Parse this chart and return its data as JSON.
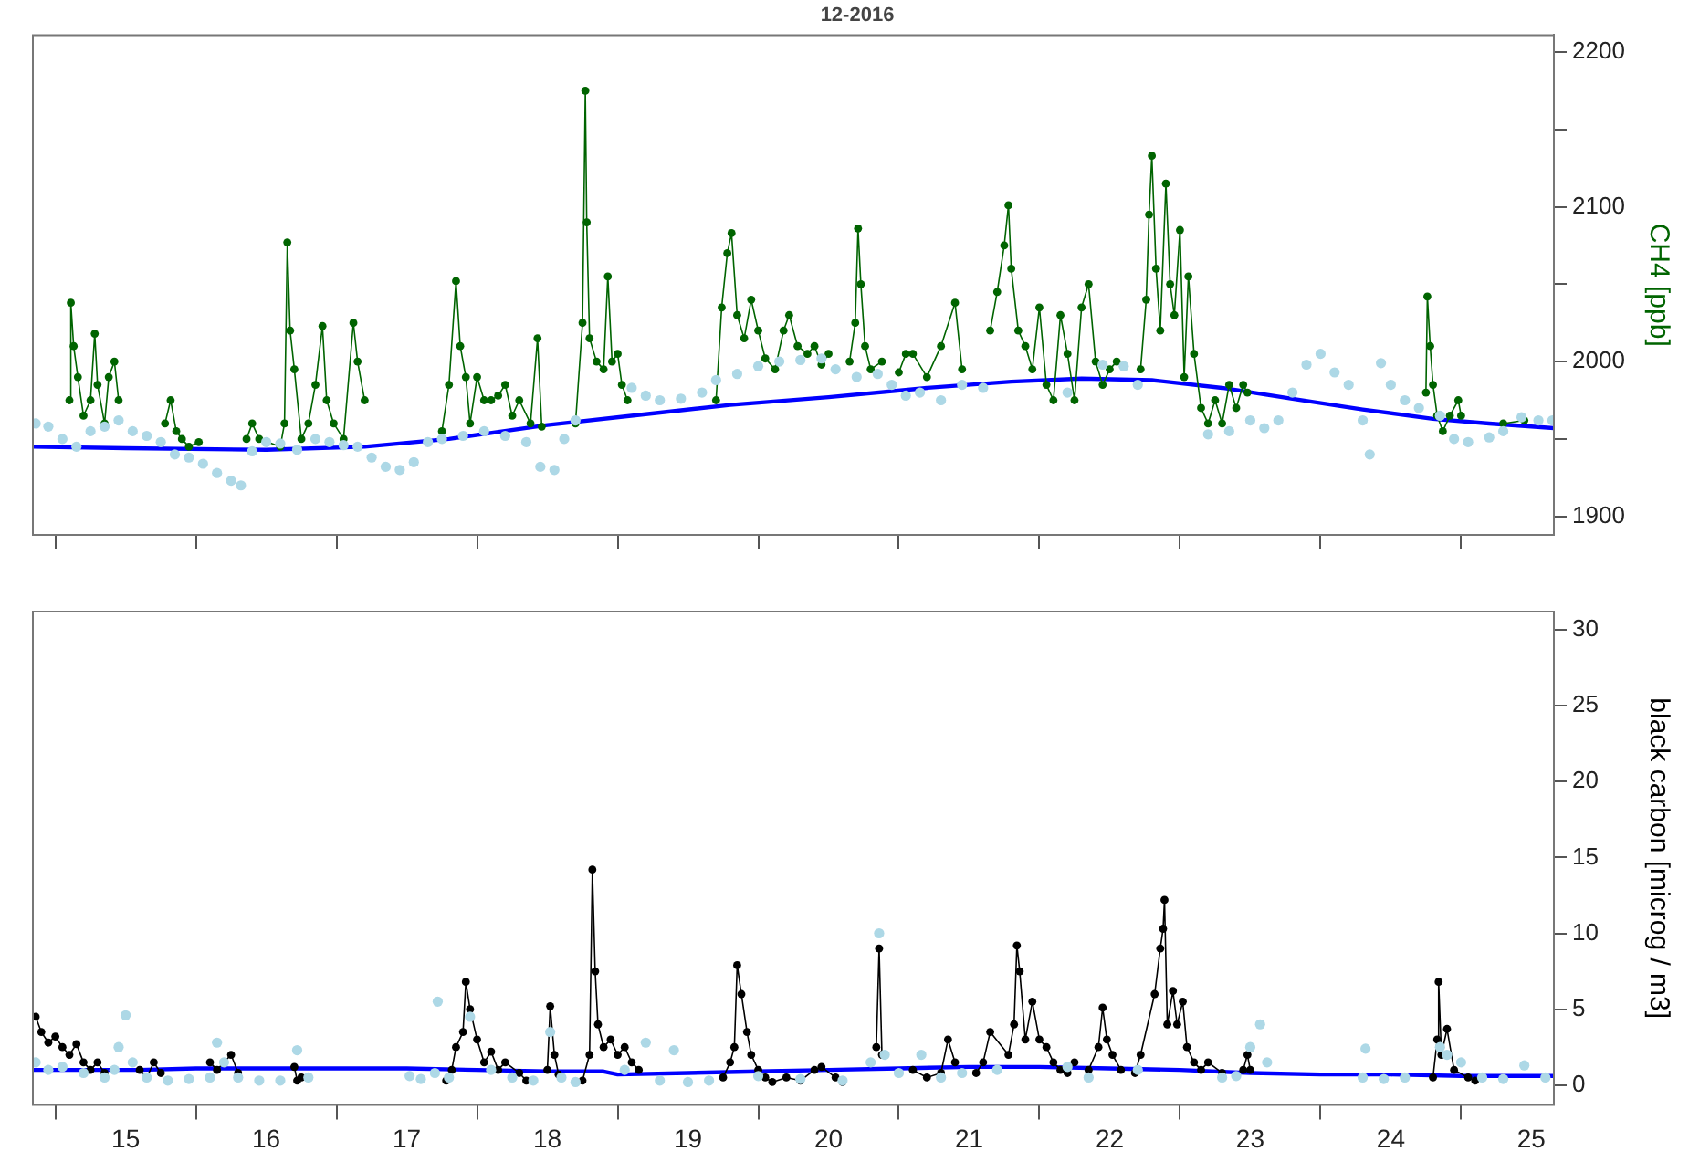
{
  "chart_data": [
    {
      "type": "line",
      "title": "12-2016",
      "ylabel": "CH4 [ppb]",
      "xlim": [
        14.84,
        25.66
      ],
      "ylim": [
        1888,
        2211
      ],
      "xticks": [
        {
          "value": 15,
          "label": null
        },
        {
          "value": 16,
          "label": null
        },
        {
          "value": 17,
          "label": null
        },
        {
          "value": 18,
          "label": null
        },
        {
          "value": 19,
          "label": null
        },
        {
          "value": 20,
          "label": null
        },
        {
          "value": 21,
          "label": null
        },
        {
          "value": 22,
          "label": null
        },
        {
          "value": 23,
          "label": null
        },
        {
          "value": 24,
          "label": null
        },
        {
          "value": 25,
          "label": null
        }
      ],
      "yticks": [
        1900,
        {
          "value": 1950,
          "label": null
        },
        2000,
        {
          "value": 2050,
          "label": null
        },
        2100,
        {
          "value": 2150,
          "label": null
        },
        2200
      ],
      "tick_labels": "y",
      "grid": false,
      "legend": false,
      "series": [
        {
          "type": "scatter",
          "color": "#add8e6",
          "marker": "circle",
          "x": [
            14.86,
            14.95,
            15.05,
            15.15,
            15.25,
            15.35,
            15.45,
            15.55,
            15.65,
            15.75,
            15.85,
            15.95,
            16.05,
            16.15,
            16.25,
            16.32,
            16.4,
            16.5,
            16.6,
            16.72,
            16.85,
            16.95,
            17.05,
            17.15,
            17.25,
            17.35,
            17.45,
            17.55,
            17.65,
            17.75,
            17.9,
            18.05,
            18.2,
            18.35,
            18.45,
            18.55,
            18.62,
            18.7,
            19.1,
            19.2,
            19.3,
            19.45,
            19.6,
            19.7,
            19.85,
            20.0,
            20.15,
            20.3,
            20.45,
            20.55,
            20.7,
            20.85,
            20.95,
            21.05,
            21.15,
            21.3,
            21.45,
            21.6,
            22.2,
            22.45,
            22.6,
            22.7,
            23.2,
            23.35,
            23.5,
            23.6,
            23.7,
            23.8,
            23.9,
            24.0,
            24.1,
            24.2,
            24.3,
            24.35,
            24.43,
            24.5,
            24.6,
            24.7,
            24.85,
            24.95,
            25.05,
            25.2,
            25.3,
            25.43,
            25.55,
            25.65
          ],
          "values": [
            1960,
            1958,
            1950,
            1945,
            1955,
            1958,
            1962,
            1955,
            1952,
            1948,
            1940,
            1938,
            1934,
            1928,
            1923,
            1920,
            1942,
            1948,
            1947,
            1943,
            1950,
            1948,
            1946,
            1945,
            1938,
            1932,
            1930,
            1935,
            1948,
            1950,
            1952,
            1955,
            1952,
            1948,
            1932,
            1930,
            1950,
            1962,
            1983,
            1978,
            1975,
            1976,
            1980,
            1988,
            1992,
            1997,
            2000,
            2001,
            2002,
            1995,
            1990,
            1992,
            1985,
            1978,
            1980,
            1975,
            1985,
            1983,
            1980,
            1998,
            1997,
            1985,
            1953,
            1955,
            1962,
            1957,
            1962,
            1980,
            1998,
            2005,
            1993,
            1985,
            1962,
            1940,
            1999,
            1985,
            1975,
            1970,
            1965,
            1950,
            1948,
            1951,
            1955,
            1964,
            1962,
            1962
          ]
        },
        {
          "type": "line",
          "color": "#006400",
          "marker": "circle",
          "x": [
            15.1,
            15.11,
            15.13,
            15.16,
            15.2,
            15.25,
            15.28,
            15.3,
            15.35,
            15.38,
            15.42,
            15.45,
            15.6,
            15.78,
            15.82,
            15.86,
            15.9,
            15.95,
            16.02,
            16.2,
            16.36,
            16.4,
            16.45,
            16.6,
            16.63,
            16.65,
            16.67,
            16.7,
            16.75,
            16.8,
            16.85,
            16.9,
            16.93,
            16.98,
            17.05,
            17.12,
            17.15,
            17.2,
            17.5,
            17.75,
            17.8,
            17.85,
            17.88,
            17.92,
            17.95,
            18.0,
            18.05,
            18.1,
            18.15,
            18.2,
            18.25,
            18.3,
            18.38,
            18.43,
            18.46,
            18.6,
            18.7,
            18.75,
            18.77,
            18.78,
            18.8,
            18.85,
            18.9,
            18.93,
            18.96,
            19.0,
            19.03,
            19.07,
            19.4,
            19.7,
            19.74,
            19.78,
            19.81,
            19.85,
            19.9,
            19.95,
            20.0,
            20.05,
            20.12,
            20.18,
            20.22,
            20.28,
            20.35,
            20.4,
            20.45,
            20.5,
            20.58,
            20.65,
            20.69,
            20.71,
            20.73,
            20.76,
            20.8,
            20.88,
            20.94,
            21.0,
            21.05,
            21.1,
            21.2,
            21.3,
            21.4,
            21.45,
            21.55,
            21.65,
            21.7,
            21.75,
            21.78,
            21.8,
            21.85,
            21.9,
            21.95,
            22.0,
            22.05,
            22.1,
            22.15,
            22.2,
            22.25,
            22.3,
            22.35,
            22.4,
            22.45,
            22.5,
            22.55,
            22.63,
            22.72,
            22.76,
            22.78,
            22.8,
            22.83,
            22.86,
            22.9,
            22.93,
            22.96,
            23.0,
            23.03,
            23.06,
            23.1,
            23.15,
            23.2,
            23.25,
            23.3,
            23.35,
            23.4,
            23.45,
            23.48,
            24.0,
            24.75,
            24.76,
            24.78,
            24.8,
            24.83,
            24.87,
            24.92,
            24.98,
            25.0,
            25.15,
            25.3,
            25.45
          ],
          "values": [
            1975,
            2038,
            2010,
            1990,
            1965,
            1975,
            2018,
            1985,
            1960,
            1990,
            2000,
            1975,
            null,
            1960,
            1975,
            1955,
            1950,
            1945,
            1948,
            null,
            1950,
            1960,
            1950,
            1945,
            1960,
            2077,
            2020,
            1995,
            1950,
            1960,
            1985,
            2023,
            1975,
            1960,
            1950,
            2025,
            2000,
            1975,
            null,
            1955,
            1985,
            2052,
            2010,
            1990,
            1960,
            1990,
            1975,
            1975,
            1978,
            1985,
            1965,
            1975,
            1960,
            2015,
            1958,
            null,
            1960,
            2025,
            2175,
            2090,
            2015,
            2000,
            1995,
            2055,
            2000,
            2005,
            1985,
            1975,
            null,
            1975,
            2035,
            2070,
            2083,
            2030,
            2015,
            2040,
            2020,
            2002,
            1995,
            2020,
            2030,
            2010,
            2005,
            2010,
            1998,
            2005,
            null,
            2000,
            2025,
            2086,
            2050,
            2010,
            1995,
            2000,
            null,
            1993,
            2005,
            2005,
            1990,
            2010,
            2038,
            1995,
            null,
            2020,
            2045,
            2075,
            2101,
            2060,
            2020,
            2010,
            1995,
            2035,
            1985,
            1975,
            2030,
            2005,
            1975,
            2035,
            2050,
            2000,
            1985,
            1995,
            2000,
            null,
            1995,
            2040,
            2095,
            2133,
            2060,
            2020,
            2115,
            2050,
            2030,
            2085,
            1990,
            2055,
            2005,
            1970,
            1960,
            1975,
            1960,
            1985,
            1970,
            1985,
            1980,
            null,
            1980,
            2042,
            2010,
            1985,
            1965,
            1955,
            1965,
            1975,
            1965,
            null,
            1960,
            1962
          ]
        },
        {
          "type": "line",
          "color": "#0000ff",
          "marker": "none",
          "x": [
            14.84,
            15.5,
            16.5,
            17.2,
            17.8,
            18.5,
            19.2,
            19.8,
            20.5,
            21.2,
            21.8,
            22.3,
            22.8,
            23.3,
            23.8,
            24.3,
            24.8,
            25.2,
            25.66
          ],
          "values": [
            1945,
            1944,
            1943,
            1945,
            1950,
            1959,
            1966,
            1972,
            1977,
            1983,
            1987,
            1989,
            1988,
            1983,
            1976,
            1969,
            1963,
            1960,
            1957
          ]
        }
      ]
    },
    {
      "type": "line",
      "ylabel": "black carbon [microg / m3]",
      "xlim": [
        14.84,
        25.66
      ],
      "ylim": [
        -1.3,
        31.2
      ],
      "xticks": [
        {
          "value": 15,
          "label": null
        },
        {
          "value": 15.5,
          "label": "15"
        },
        {
          "value": 16,
          "label": null
        },
        {
          "value": 16.5,
          "label": "16"
        },
        {
          "value": 17,
          "label": null
        },
        {
          "value": 17.5,
          "label": "17"
        },
        {
          "value": 18,
          "label": null
        },
        {
          "value": 18.5,
          "label": "18"
        },
        {
          "value": 19,
          "label": null
        },
        {
          "value": 19.5,
          "label": "19"
        },
        {
          "value": 20,
          "label": null
        },
        {
          "value": 20.5,
          "label": "20"
        },
        {
          "value": 21,
          "label": null
        },
        {
          "value": 21.5,
          "label": "21"
        },
        {
          "value": 22,
          "label": null
        },
        {
          "value": 22.5,
          "label": "22"
        },
        {
          "value": 23,
          "label": null
        },
        {
          "value": 23.5,
          "label": "23"
        },
        {
          "value": 24,
          "label": null
        },
        {
          "value": 24.5,
          "label": "24"
        },
        {
          "value": 25,
          "label": null
        },
        {
          "value": 25.5,
          "label": "25"
        }
      ],
      "yticks": [
        0,
        5,
        10,
        15,
        20,
        25,
        30
      ],
      "grid": false,
      "legend": false,
      "series": [
        {
          "type": "scatter",
          "color": "#add8e6",
          "marker": "circle",
          "x": [
            14.86,
            14.95,
            15.05,
            15.2,
            15.35,
            15.42,
            15.45,
            15.5,
            15.55,
            15.65,
            15.8,
            15.95,
            16.1,
            16.15,
            16.2,
            16.3,
            16.45,
            16.6,
            16.72,
            16.8,
            17.52,
            17.6,
            17.7,
            17.72,
            17.8,
            17.95,
            18.1,
            18.25,
            18.4,
            18.52,
            18.6,
            18.7,
            19.05,
            19.2,
            19.3,
            19.4,
            19.5,
            19.65,
            20.0,
            20.3,
            20.6,
            20.8,
            20.86,
            20.9,
            21.0,
            21.16,
            21.3,
            21.45,
            21.7,
            22.2,
            22.35,
            22.7,
            23.3,
            23.4,
            23.5,
            23.57,
            23.62,
            24.3,
            24.32,
            24.45,
            24.6,
            24.85,
            24.9,
            25.0,
            25.15,
            25.3,
            25.45,
            25.6
          ],
          "values": [
            1.5,
            1.0,
            1.2,
            0.8,
            0.5,
            1.0,
            2.5,
            4.6,
            1.5,
            0.5,
            0.3,
            0.4,
            0.5,
            2.8,
            1.5,
            0.5,
            0.3,
            0.3,
            2.3,
            0.5,
            0.6,
            0.4,
            0.8,
            5.5,
            0.5,
            4.5,
            1.0,
            0.5,
            0.3,
            3.5,
            0.5,
            0.2,
            1.0,
            2.8,
            0.3,
            2.3,
            0.2,
            0.3,
            0.6,
            0.4,
            0.3,
            1.5,
            10.0,
            2.0,
            0.8,
            2.0,
            0.5,
            0.8,
            1.0,
            1.2,
            0.5,
            1.0,
            0.5,
            0.6,
            2.5,
            4.0,
            1.5,
            0.5,
            2.4,
            0.4,
            0.5,
            2.5,
            2.0,
            1.5,
            0.5,
            0.4,
            1.3,
            0.5
          ]
        },
        {
          "type": "line",
          "color": "#000000",
          "marker": "circle",
          "x": [
            14.86,
            14.9,
            14.95,
            15.0,
            15.05,
            15.1,
            15.15,
            15.2,
            15.25,
            15.3,
            15.35,
            15.5,
            15.6,
            15.65,
            15.7,
            15.75,
            15.9,
            16.1,
            16.15,
            16.25,
            16.3,
            16.5,
            16.7,
            16.72,
            16.75,
            17.2,
            17.78,
            17.82,
            17.85,
            17.9,
            17.92,
            17.95,
            18.0,
            18.05,
            18.1,
            18.15,
            18.2,
            18.3,
            18.35,
            18.42,
            18.5,
            18.52,
            18.55,
            18.58,
            18.66,
            18.75,
            18.8,
            18.82,
            18.84,
            18.86,
            18.9,
            18.95,
            19.0,
            19.05,
            19.1,
            19.15,
            19.4,
            19.75,
            19.8,
            19.83,
            19.85,
            19.88,
            19.92,
            19.95,
            20.0,
            20.05,
            20.1,
            20.2,
            20.3,
            20.4,
            20.45,
            20.55,
            20.6,
            20.7,
            20.84,
            20.86,
            20.88,
            20.95,
            21.1,
            21.2,
            21.3,
            21.35,
            21.4,
            21.48,
            21.55,
            21.6,
            21.65,
            21.78,
            21.82,
            21.84,
            21.86,
            21.9,
            21.95,
            22.0,
            22.05,
            22.1,
            22.15,
            22.2,
            22.25,
            22.3,
            22.35,
            22.42,
            22.45,
            22.48,
            22.52,
            22.58,
            22.63,
            22.68,
            22.72,
            22.82,
            22.86,
            22.88,
            22.89,
            22.91,
            22.95,
            22.98,
            23.02,
            23.05,
            23.1,
            23.15,
            23.2,
            23.3,
            23.38,
            23.45,
            23.48,
            23.5,
            24.0,
            24.8,
            24.83,
            24.84,
            24.86,
            24.9,
            24.95,
            25.05,
            25.1
          ],
          "values": [
            4.5,
            3.5,
            2.8,
            3.2,
            2.5,
            2.0,
            2.7,
            1.5,
            1.0,
            1.5,
            0.8,
            null,
            1.0,
            0.5,
            1.5,
            0.8,
            null,
            1.5,
            1.0,
            2.0,
            0.8,
            null,
            1.2,
            0.3,
            0.5,
            null,
            0.3,
            1.0,
            2.5,
            3.5,
            6.8,
            5.0,
            3.0,
            1.5,
            2.2,
            1.0,
            1.5,
            0.8,
            0.3,
            null,
            1.0,
            5.2,
            2.0,
            0.7,
            null,
            0.3,
            2.0,
            14.2,
            7.5,
            4.0,
            2.5,
            3.0,
            2.0,
            2.5,
            1.5,
            1.0,
            null,
            0.5,
            1.5,
            2.5,
            7.9,
            6.0,
            3.5,
            2.0,
            1.0,
            0.5,
            0.2,
            0.5,
            0.3,
            1.0,
            1.2,
            0.5,
            0.2,
            null,
            2.5,
            9.0,
            2.0,
            null,
            1.0,
            0.5,
            0.8,
            3.0,
            1.5,
            null,
            0.8,
            1.5,
            3.5,
            2.0,
            4.0,
            9.2,
            7.5,
            3.0,
            5.5,
            3.0,
            2.5,
            1.5,
            1.0,
            0.8,
            1.5,
            null,
            1.0,
            2.5,
            5.1,
            3.0,
            2.0,
            1.0,
            null,
            0.8,
            2.0,
            6.0,
            9.0,
            10.3,
            12.2,
            4.0,
            6.2,
            4.0,
            5.5,
            2.5,
            1.5,
            1.0,
            1.5,
            0.8,
            null,
            1.0,
            2.0,
            1.0,
            null,
            0.5,
            3.0,
            6.8,
            2.0,
            3.7,
            1.0,
            0.5,
            0.3
          ]
        },
        {
          "type": "line",
          "color": "#0000ff",
          "marker": "none",
          "x": [
            14.84,
            15.6,
            16.0,
            16.5,
            17.0,
            17.5,
            18.0,
            18.5,
            18.9,
            19.0,
            19.5,
            20.0,
            20.5,
            21.0,
            21.5,
            22.0,
            22.5,
            23.0,
            23.5,
            24.0,
            24.5,
            25.0,
            25.66
          ],
          "values": [
            1.0,
            1.0,
            1.1,
            1.1,
            1.1,
            1.1,
            1.0,
            0.9,
            0.9,
            0.7,
            0.8,
            0.9,
            1.0,
            1.1,
            1.2,
            1.2,
            1.1,
            1.0,
            0.8,
            0.7,
            0.7,
            0.6,
            0.6
          ]
        }
      ]
    }
  ]
}
